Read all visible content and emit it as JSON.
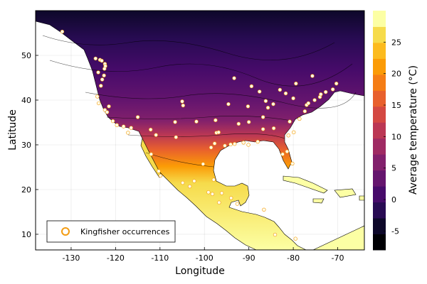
{
  "chart_data": {
    "type": "heatmap",
    "title": "",
    "xlabel": "Longitude",
    "ylabel": "Latitude",
    "xlim": [
      -138,
      -64
    ],
    "ylim": [
      6.5,
      60
    ],
    "x_ticks": [
      -130,
      -120,
      -110,
      -100,
      -90,
      -80,
      -70
    ],
    "y_ticks": [
      10,
      20,
      30,
      40,
      50
    ],
    "grid": true,
    "colorbar": {
      "label": "Average temperature (°C)",
      "range": [
        -8,
        30
      ],
      "ticks": [
        -5,
        0,
        5,
        10,
        15,
        20,
        25
      ],
      "colors": [
        "#000004",
        "#0d0829",
        "#280b53",
        "#470b6a",
        "#65156e",
        "#82206c",
        "#9f2a63",
        "#bb3754",
        "#d44842",
        "#e8602d",
        "#f57d15",
        "#fb9b06",
        "#fcbb1e",
        "#f6db4b",
        "#fcffa4"
      ]
    },
    "legend": {
      "position": "bottom-left",
      "entries": [
        "Kingfisher occurrences"
      ],
      "marker_color": "#f39c12"
    },
    "series": [
      {
        "name": "Kingfisher occurrences",
        "type": "scatter",
        "points": [
          [
            -132,
            55.3
          ],
          [
            -124.5,
            49.3
          ],
          [
            -123.5,
            49.0
          ],
          [
            -123.1,
            48.8
          ],
          [
            -122.4,
            48.1
          ],
          [
            -122.3,
            47.6
          ],
          [
            -122.5,
            47.0
          ],
          [
            -123.9,
            46.2
          ],
          [
            -122.6,
            45.5
          ],
          [
            -123.0,
            44.6
          ],
          [
            -123.3,
            43.2
          ],
          [
            -124.1,
            40.8
          ],
          [
            -123.8,
            39.3
          ],
          [
            -122.4,
            37.8
          ],
          [
            -121.9,
            37.3
          ],
          [
            -121.5,
            38.6
          ],
          [
            -120.6,
            35.3
          ],
          [
            -119.7,
            34.4
          ],
          [
            -118.2,
            34.1
          ],
          [
            -117.2,
            32.7
          ],
          [
            -116.5,
            33.8
          ],
          [
            -115.0,
            36.2
          ],
          [
            -112.1,
            33.4
          ],
          [
            -110.9,
            32.2
          ],
          [
            -106.6,
            35.1
          ],
          [
            -105.0,
            39.7
          ],
          [
            -104.8,
            38.8
          ],
          [
            -101.8,
            35.2
          ],
          [
            -97.5,
            35.5
          ],
          [
            -97.3,
            32.7
          ],
          [
            -96.8,
            32.8
          ],
          [
            -97.7,
            30.3
          ],
          [
            -98.5,
            29.4
          ],
          [
            -95.4,
            29.8
          ],
          [
            -94.1,
            30.1
          ],
          [
            -93.2,
            30.2
          ],
          [
            -91.2,
            30.5
          ],
          [
            -90.1,
            30.0
          ],
          [
            -88.0,
            30.7
          ],
          [
            -86.8,
            33.5
          ],
          [
            -84.4,
            33.7
          ],
          [
            -81.1,
            32.1
          ],
          [
            -82.4,
            27.9
          ],
          [
            -81.4,
            28.5
          ],
          [
            -80.2,
            25.8
          ],
          [
            -80.8,
            35.2
          ],
          [
            -78.6,
            35.8
          ],
          [
            -77.4,
            37.5
          ],
          [
            -77.0,
            38.9
          ],
          [
            -76.6,
            39.3
          ],
          [
            -75.2,
            40.0
          ],
          [
            -74.0,
            40.7
          ],
          [
            -73.8,
            41.3
          ],
          [
            -72.7,
            41.8
          ],
          [
            -71.1,
            42.4
          ],
          [
            -70.3,
            43.7
          ],
          [
            -75.7,
            45.4
          ],
          [
            -79.4,
            43.7
          ],
          [
            -83.0,
            42.3
          ],
          [
            -87.6,
            41.9
          ],
          [
            -90.2,
            38.6
          ],
          [
            -93.3,
            44.9
          ],
          [
            -94.6,
            39.1
          ],
          [
            -86.2,
            39.8
          ],
          [
            -84.5,
            39.1
          ],
          [
            -85.7,
            38.3
          ],
          [
            -81.7,
            41.5
          ],
          [
            -80.0,
            40.4
          ],
          [
            -89.4,
            43.1
          ],
          [
            -92.3,
            34.7
          ],
          [
            -90.0,
            35.1
          ],
          [
            -86.8,
            36.2
          ],
          [
            -79.9,
            32.8
          ],
          [
            -104.9,
            21.5
          ],
          [
            -103.3,
            20.7
          ],
          [
            -102.3,
            21.9
          ],
          [
            -99.1,
            19.4
          ],
          [
            -98.2,
            19.0
          ],
          [
            -96.7,
            17.1
          ],
          [
            -97.9,
            22.2
          ],
          [
            -100.3,
            25.7
          ],
          [
            -109.9,
            23.1
          ],
          [
            -110.3,
            24.1
          ],
          [
            -112.0,
            27.9
          ],
          [
            -106.4,
            31.7
          ],
          [
            -96.1,
            19.2
          ],
          [
            -94.0,
            18.1
          ],
          [
            -92.6,
            16.8
          ],
          [
            -86.6,
            15.5
          ],
          [
            -84.1,
            9.9
          ],
          [
            -79.5,
            9.0
          ]
        ]
      }
    ]
  }
}
